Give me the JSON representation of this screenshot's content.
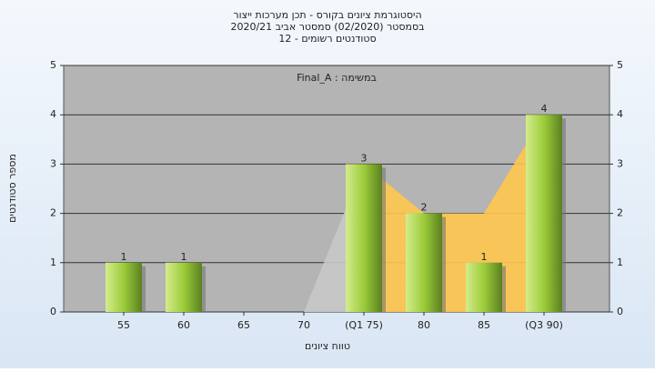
{
  "chart_data": {
    "type": "bar",
    "title_lines": [
      "היסטוגרמת ציונים בקורס - תכן מערכות ייצור",
      "בסמסטר  (02/2020)  סמסטר אביב 2020/21",
      "סטודנטים רשומים - 12"
    ],
    "annotation": "Final_A : במשימה",
    "ylabel": "מספר סטודנטים",
    "xlabel": "טווח ציונים",
    "categories": [
      "55",
      "60",
      "65",
      "70",
      "(Q1 75)",
      "80",
      "85",
      "(Q3 90)"
    ],
    "values": [
      1,
      1,
      0,
      0,
      3,
      2,
      1,
      4
    ],
    "color": "#9ccc3a",
    "areas": [
      {
        "color": "#c8c8c8",
        "values": [
          null,
          null,
          null,
          0,
          3,
          null,
          null,
          null
        ]
      },
      {
        "color": "#ffc84e",
        "values": [
          null,
          null,
          null,
          null,
          3,
          2,
          2,
          4
        ]
      }
    ],
    "ylim": [
      0,
      5
    ],
    "yticks": [
      0,
      1,
      2,
      3,
      4,
      5
    ],
    "y2lim": [
      0,
      5
    ],
    "y2ticks": [
      0,
      1,
      2,
      3,
      4,
      5
    ]
  }
}
